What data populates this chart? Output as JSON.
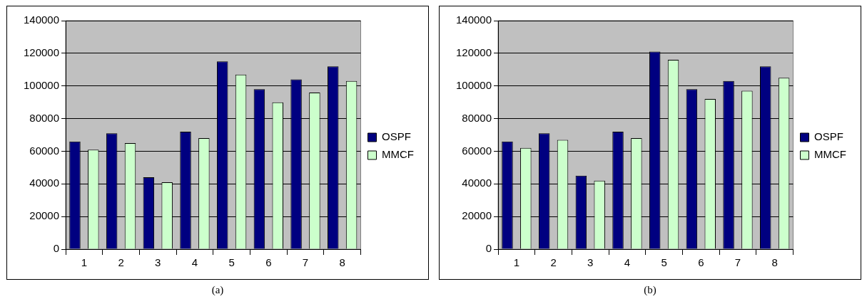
{
  "chart_data": [
    {
      "type": "bar",
      "categories": [
        "1",
        "2",
        "3",
        "4",
        "5",
        "6",
        "7",
        "8"
      ],
      "series": [
        {
          "name": "OSPF",
          "color": "#000080",
          "values": [
            66000,
            71000,
            44000,
            72000,
            115000,
            98000,
            104000,
            112000
          ]
        },
        {
          "name": "MMCF",
          "color": "#ccffcc",
          "values": [
            61000,
            65000,
            41000,
            68000,
            107000,
            90000,
            96000,
            103000
          ]
        }
      ],
      "ylim": [
        0,
        140000
      ],
      "yticks": [
        0,
        20000,
        40000,
        60000,
        80000,
        100000,
        120000,
        140000
      ],
      "grid": "y",
      "legend": "right",
      "annotations": [
        "(a)"
      ]
    },
    {
      "type": "bar",
      "categories": [
        "1",
        "2",
        "3",
        "4",
        "5",
        "6",
        "7",
        "8"
      ],
      "series": [
        {
          "name": "OSPF",
          "color": "#000080",
          "values": [
            66000,
            71000,
            45000,
            72000,
            121000,
            98000,
            103000,
            112000
          ]
        },
        {
          "name": "MMCF",
          "color": "#ccffcc",
          "values": [
            62000,
            67000,
            42000,
            68000,
            116000,
            92000,
            97000,
            105000
          ]
        }
      ],
      "ylim": [
        0,
        140000
      ],
      "yticks": [
        0,
        20000,
        40000,
        60000,
        80000,
        100000,
        120000,
        140000
      ],
      "grid": "y",
      "legend": "right",
      "annotations": [
        "(b)"
      ]
    }
  ]
}
